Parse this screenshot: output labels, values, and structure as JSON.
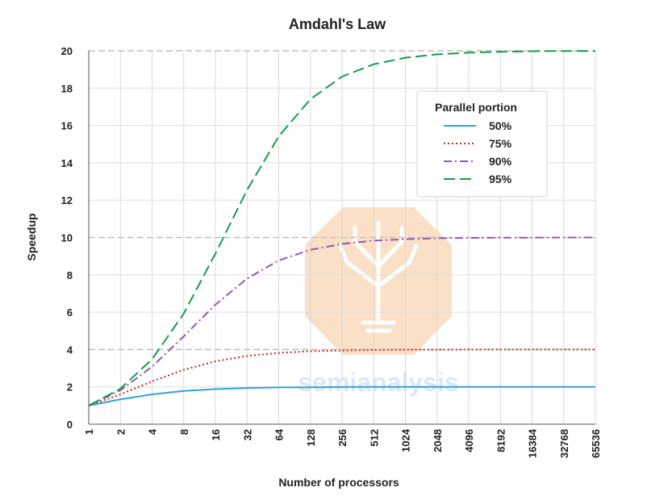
{
  "chart_data": {
    "type": "line",
    "title": "Amdahl's Law",
    "xlabel": "Number of processors",
    "ylabel": "Speedup",
    "x_scale": "log2",
    "x": [
      1,
      2,
      4,
      8,
      16,
      32,
      64,
      128,
      256,
      512,
      1024,
      2048,
      4096,
      8192,
      16384,
      32768,
      65536
    ],
    "x_tick_labels": [
      "1",
      "2",
      "4",
      "8",
      "16",
      "32",
      "64",
      "128",
      "256",
      "512",
      "1024",
      "2048",
      "4096",
      "8192",
      "16384",
      "32768",
      "65536"
    ],
    "ylim": [
      0,
      20
    ],
    "y_ticks": [
      0,
      2,
      4,
      6,
      8,
      10,
      12,
      14,
      16,
      18,
      20
    ],
    "grid": true,
    "legend": {
      "title": "Parallel portion",
      "placement": "top-right"
    },
    "series": [
      {
        "name": "50%",
        "color": "#2fa4d9",
        "style": "solid",
        "values": [
          1.0,
          1.33,
          1.6,
          1.78,
          1.88,
          1.94,
          1.97,
          1.98,
          1.99,
          2.0,
          2.0,
          2.0,
          2.0,
          2.0,
          2.0,
          2.0,
          2.0
        ]
      },
      {
        "name": "75%",
        "color": "#c62828",
        "style": "dotted",
        "values": [
          1.0,
          1.6,
          2.29,
          2.91,
          3.37,
          3.66,
          3.82,
          3.91,
          3.95,
          3.98,
          3.99,
          3.99,
          4.0,
          4.0,
          4.0,
          4.0,
          4.0
        ]
      },
      {
        "name": "90%",
        "color": "#8e5ba8",
        "style": "dashdot",
        "values": [
          1.0,
          1.82,
          3.08,
          4.71,
          6.4,
          7.8,
          8.77,
          9.34,
          9.66,
          9.83,
          9.91,
          9.96,
          9.98,
          9.99,
          9.99,
          10.0,
          10.0
        ]
      },
      {
        "name": "95%",
        "color": "#1a9b4f",
        "style": "dashed",
        "values": [
          1.0,
          1.9,
          3.48,
          5.93,
          9.14,
          12.55,
          15.42,
          17.41,
          18.62,
          19.28,
          19.63,
          19.81,
          19.9,
          19.95,
          19.98,
          19.99,
          19.99
        ]
      }
    ]
  },
  "watermark": {
    "text": "semianalysis",
    "colors": {
      "octagon": "#f6d0a8",
      "text": "#c8d6ee",
      "tree": "#ffffff"
    }
  }
}
